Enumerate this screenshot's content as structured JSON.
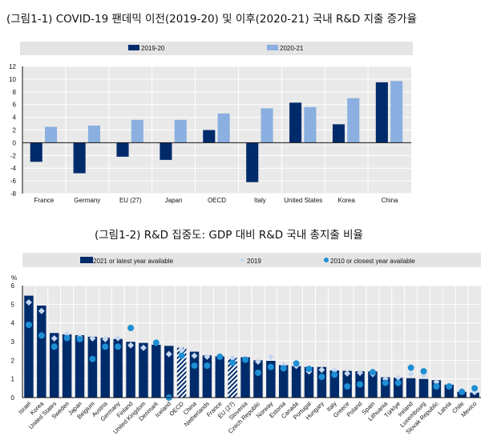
{
  "titles": {
    "chart1": "(그림1-1) COVID-19 팬데믹 이전(2019-20) 및 이후(2020-21) 국내 R&D 지출 증가율",
    "chart2": "(그림1-2) R&D 집중도: GDP 대비 R&D 국내 총지출 비율"
  },
  "colors": {
    "dark": "#002b6b",
    "light": "#8aafe0",
    "dot2019": "#c5d8f0",
    "dot2010": "#1e8fd5",
    "plot_bg": "#e9e9e9",
    "legend_bg": "#e4e4e4"
  },
  "chart_data": [
    {
      "type": "bar",
      "categories": [
        "France",
        "Germany",
        "EU (27)",
        "Japan",
        "OECD",
        "Italy",
        "United States",
        "Korea",
        "China"
      ],
      "series": [
        {
          "name": "2019-20",
          "values": [
            -3.0,
            -4.8,
            -2.2,
            -2.7,
            2.0,
            -6.2,
            6.3,
            2.9,
            9.5
          ]
        },
        {
          "name": "2020-21",
          "values": [
            2.5,
            2.7,
            3.6,
            3.6,
            4.6,
            5.4,
            5.6,
            7.0,
            9.7
          ]
        }
      ],
      "ylim": [
        -8,
        12
      ],
      "yticks": [
        12,
        10,
        8,
        6,
        4,
        2,
        0,
        -2,
        -4,
        -6,
        -8
      ],
      "grid": true,
      "legend": "top"
    },
    {
      "type": "bar",
      "ylabel": "%",
      "ylim": [
        0,
        6
      ],
      "yticks": [
        0,
        1,
        2,
        3,
        4,
        5,
        6
      ],
      "grid": true,
      "legend": "top",
      "categories": [
        "Israel",
        "Korea",
        "United States",
        "Sweden",
        "Japan",
        "Belgium",
        "Austria",
        "Germany",
        "Finland",
        "United Kingdom",
        "Denmark",
        "Iceland",
        "OECD",
        "China",
        "Netherlands",
        "France",
        "EU (27)",
        "Slovenia",
        "Czech Republic",
        "Norway",
        "Estonia",
        "Canada",
        "Portugal",
        "Hungary",
        "Italy",
        "Greece",
        "Poland",
        "Spain",
        "Lithuania",
        "Türkiye",
        "Ireland",
        "Luxembourg",
        "Slovak Republic",
        "Latvia",
        "Chile",
        "Mexico"
      ],
      "aggregates": [
        "OECD",
        "EU (27)"
      ],
      "series": [
        {
          "name": "2021 or latest year available",
          "values": [
            5.46,
            4.93,
            3.46,
            3.39,
            3.34,
            3.26,
            3.2,
            3.14,
            2.99,
            2.93,
            2.83,
            2.77,
            2.67,
            2.46,
            2.26,
            2.21,
            2.13,
            2.16,
            2.0,
            1.97,
            1.74,
            1.69,
            1.64,
            1.64,
            1.46,
            1.43,
            1.41,
            1.4,
            1.09,
            1.07,
            1.04,
            1.0,
            0.93,
            0.69,
            0.31,
            0.27
          ]
        },
        {
          "name": "2019",
          "values": [
            5.1,
            4.64,
            3.17,
            3.4,
            3.24,
            3.17,
            3.13,
            3.19,
            2.8,
            2.67,
            null,
            2.33,
            2.53,
            2.24,
            2.19,
            2.2,
            2.11,
            2.05,
            1.93,
            2.17,
            1.75,
            1.7,
            1.4,
            1.49,
            1.46,
            1.29,
            1.33,
            1.26,
            1.0,
            1.07,
            1.26,
            1.19,
            0.83,
            0.64,
            0.34,
            0.29
          ]
        },
        {
          "name": "2010 or closest year available",
          "values": [
            3.9,
            3.33,
            2.73,
            3.19,
            3.13,
            2.07,
            2.73,
            2.73,
            3.73,
            null,
            2.94,
            0.0,
            2.24,
            1.71,
            1.71,
            2.19,
            1.86,
            2.03,
            1.33,
            1.64,
            1.57,
            1.83,
            1.54,
            1.11,
            1.23,
            0.6,
            0.71,
            1.36,
            0.79,
            0.79,
            1.6,
            1.41,
            0.6,
            0.6,
            0.31,
            0.5
          ]
        }
      ]
    }
  ]
}
